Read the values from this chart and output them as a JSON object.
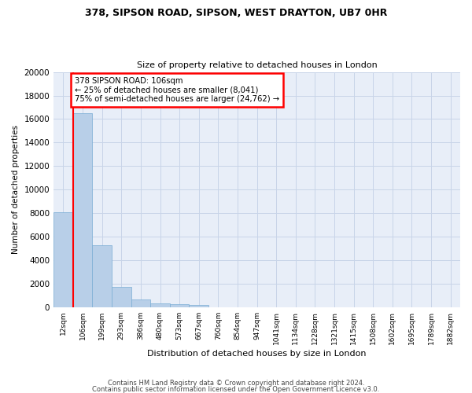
{
  "title_line1": "378, SIPSON ROAD, SIPSON, WEST DRAYTON, UB7 0HR",
  "title_line2": "Size of property relative to detached houses in London",
  "xlabel": "Distribution of detached houses by size in London",
  "ylabel": "Number of detached properties",
  "categories": [
    "12sqm",
    "106sqm",
    "199sqm",
    "293sqm",
    "386sqm",
    "480sqm",
    "573sqm",
    "667sqm",
    "760sqm",
    "854sqm",
    "947sqm",
    "1041sqm",
    "1134sqm",
    "1228sqm",
    "1321sqm",
    "1415sqm",
    "1508sqm",
    "1602sqm",
    "1695sqm",
    "1789sqm",
    "1882sqm"
  ],
  "values": [
    8100,
    16500,
    5300,
    1750,
    700,
    350,
    270,
    200,
    0,
    0,
    0,
    0,
    0,
    0,
    0,
    0,
    0,
    0,
    0,
    0,
    0
  ],
  "bar_color": "#b8cfe8",
  "bar_edgecolor": "#7aadd4",
  "annotation_text": "378 SIPSON ROAD: 106sqm\n← 25% of detached houses are smaller (8,041)\n75% of semi-detached houses are larger (24,762) →",
  "annotation_box_color": "white",
  "annotation_box_edgecolor": "red",
  "red_line_color": "red",
  "ylim": [
    0,
    20000
  ],
  "yticks": [
    0,
    2000,
    4000,
    6000,
    8000,
    10000,
    12000,
    14000,
    16000,
    18000,
    20000
  ],
  "grid_color": "#c8d4e8",
  "background_color": "#e8eef8",
  "footer_line1": "Contains HM Land Registry data © Crown copyright and database right 2024.",
  "footer_line2": "Contains public sector information licensed under the Open Government Licence v3.0."
}
